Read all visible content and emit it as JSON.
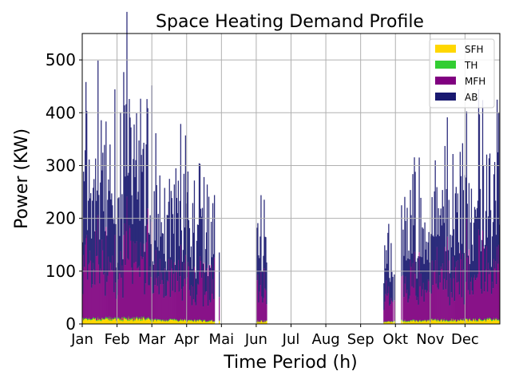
{
  "chart_data": {
    "type": "area",
    "title": "Space Heating Demand Profile",
    "xlabel": "Time Period (h)",
    "ylabel": "Power (KW)",
    "ylim": [
      0,
      550
    ],
    "yticks": [
      0,
      100,
      200,
      300,
      400,
      500
    ],
    "months": [
      "Jan",
      "Feb",
      "Mar",
      "Apr",
      "Mai",
      "Jun",
      "Jul",
      "Aug",
      "Sep",
      "Okt",
      "Nov",
      "Dec"
    ],
    "grid": true,
    "legend_position": "top-right",
    "series": [
      {
        "name": "SFH",
        "color": "#ffd700",
        "typical_kw": 8,
        "peak_kw": 16
      },
      {
        "name": "TH",
        "color": "#32cd32",
        "typical_kw": 2,
        "peak_kw": 5
      },
      {
        "name": "MFH",
        "color": "#800080",
        "typical_kw": 110,
        "peak_kw": 200
      },
      {
        "name": "AB",
        "color": "#191970",
        "typical_kw": 170,
        "peak_kw": 300
      }
    ],
    "monthly_peak_total_kw": [
      470,
      510,
      360,
      330,
      0,
      270,
      0,
      0,
      240,
      320,
      360,
      420
    ]
  }
}
